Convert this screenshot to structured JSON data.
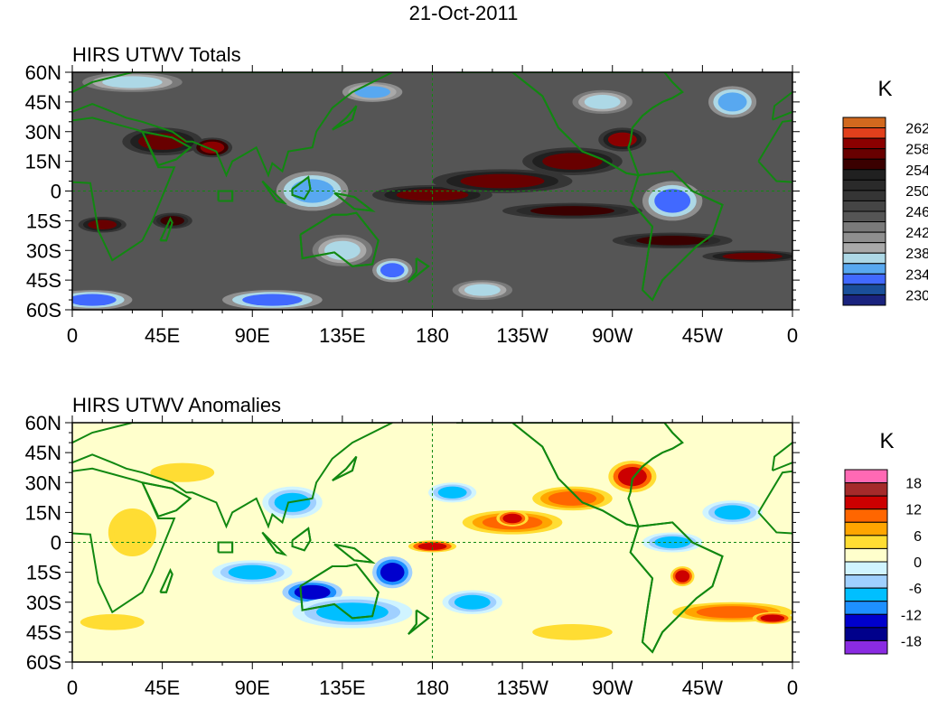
{
  "figure_title": "21-Oct-2011",
  "chart_data": [
    {
      "type": "heatmap",
      "title": "HIRS UTWV Totals",
      "units": "K",
      "lon_ticks": [
        "0",
        "45E",
        "90E",
        "135E",
        "180",
        "135W",
        "90W",
        "45W",
        "0"
      ],
      "lat_ticks": [
        "60N",
        "45N",
        "30N",
        "15N",
        "0",
        "15S",
        "30S",
        "45S",
        "60S"
      ],
      "lon_range": [
        0,
        360
      ],
      "lat_range": [
        -60,
        60
      ],
      "colorbar": {
        "levels_start": 230,
        "levels_step": 2,
        "labels": [
          "262",
          "258",
          "254",
          "250",
          "246",
          "242",
          "238",
          "234",
          "230"
        ],
        "colors_top_to_bottom": [
          "#d2691e",
          "#e2401c",
          "#8b0000",
          "#680000",
          "#3a0000",
          "#202020",
          "#2a2a2a",
          "#353535",
          "#454545",
          "#555555",
          "#7a7a7a",
          "#8f8f8f",
          "#a9a9a9",
          "#add8e6",
          "#58a8f0",
          "#4169ff",
          "#1a4f9a",
          "#1a237e"
        ]
      },
      "background_value": 245,
      "features": [
        {
          "lon": 180,
          "lat": -2,
          "rlon": 30,
          "rlat": 5,
          "value": 256
        },
        {
          "lon": 215,
          "lat": 5,
          "rlon": 35,
          "rlat": 6,
          "value": 256
        },
        {
          "lon": 250,
          "lat": 15,
          "rlon": 25,
          "rlat": 7,
          "value": 257
        },
        {
          "lon": 275,
          "lat": 26,
          "rlon": 12,
          "rlat": 6,
          "value": 258
        },
        {
          "lon": 250,
          "lat": -10,
          "rlon": 35,
          "rlat": 4,
          "value": 255
        },
        {
          "lon": 300,
          "lat": -25,
          "rlon": 30,
          "rlat": 4,
          "value": 255
        },
        {
          "lon": 340,
          "lat": -33,
          "rlon": 25,
          "rlat": 3,
          "value": 256
        },
        {
          "lon": 45,
          "lat": 25,
          "rlon": 20,
          "rlat": 7,
          "value": 257
        },
        {
          "lon": 70,
          "lat": 22,
          "rlon": 10,
          "rlat": 5,
          "value": 259
        },
        {
          "lon": 15,
          "lat": -17,
          "rlon": 12,
          "rlat": 4,
          "value": 256
        },
        {
          "lon": 50,
          "lat": -15,
          "rlon": 10,
          "rlat": 4,
          "value": 255
        },
        {
          "lon": 120,
          "lat": 0,
          "rlon": 18,
          "rlat": 10,
          "value": 234
        },
        {
          "lon": 135,
          "lat": -30,
          "rlon": 15,
          "rlat": 8,
          "value": 237
        },
        {
          "lon": 160,
          "lat": -40,
          "rlon": 10,
          "rlat": 6,
          "value": 233
        },
        {
          "lon": 300,
          "lat": -5,
          "rlon": 15,
          "rlat": 10,
          "value": 233
        },
        {
          "lon": 265,
          "lat": 45,
          "rlon": 15,
          "rlat": 6,
          "value": 236
        },
        {
          "lon": 330,
          "lat": 45,
          "rlon": 12,
          "rlat": 8,
          "value": 234
        },
        {
          "lon": 30,
          "lat": 55,
          "rlon": 25,
          "rlat": 5,
          "value": 236
        },
        {
          "lon": 150,
          "lat": 50,
          "rlon": 15,
          "rlat": 5,
          "value": 235
        },
        {
          "lon": 100,
          "lat": -55,
          "rlon": 25,
          "rlat": 5,
          "value": 232
        },
        {
          "lon": 10,
          "lat": -55,
          "rlon": 20,
          "rlat": 5,
          "value": 233
        },
        {
          "lon": 205,
          "lat": -50,
          "rlon": 15,
          "rlat": 5,
          "value": 236
        }
      ]
    },
    {
      "type": "heatmap",
      "title": "HIRS UTWV Anomalies",
      "units": "K",
      "lon_ticks": [
        "0",
        "45E",
        "90E",
        "135E",
        "180",
        "135W",
        "90W",
        "45W",
        "0"
      ],
      "lat_ticks": [
        "60N",
        "45N",
        "30N",
        "15N",
        "0",
        "15S",
        "30S",
        "45S",
        "60S"
      ],
      "lon_range": [
        0,
        360
      ],
      "lat_range": [
        -60,
        60
      ],
      "colorbar": {
        "levels_start": -18,
        "levels_step": 3,
        "labels": [
          "18",
          "12",
          "6",
          "0",
          "-6",
          "-12",
          "-18"
        ],
        "colors_top_to_bottom": [
          "#ff69b4",
          "#a52a2a",
          "#cc0000",
          "#ff6600",
          "#ffa500",
          "#ffdd33",
          "#ffffcc",
          "#d0f4ff",
          "#a0d0ff",
          "#00bfff",
          "#1e90ff",
          "#0000cd",
          "#00008b",
          "#8a2be2"
        ]
      },
      "background_value": 1,
      "features": [
        {
          "lon": 220,
          "lat": 10,
          "rlon": 25,
          "rlat": 6,
          "value": 9
        },
        {
          "lon": 250,
          "lat": 22,
          "rlon": 20,
          "rlat": 6,
          "value": 10
        },
        {
          "lon": 280,
          "lat": 33,
          "rlon": 12,
          "rlat": 8,
          "value": 14
        },
        {
          "lon": 220,
          "lat": 12,
          "rlon": 8,
          "rlat": 4,
          "value": 13
        },
        {
          "lon": 180,
          "lat": -2,
          "rlon": 12,
          "rlat": 3,
          "value": 13
        },
        {
          "lon": 330,
          "lat": -35,
          "rlon": 30,
          "rlat": 5,
          "value": 11
        },
        {
          "lon": 350,
          "lat": -38,
          "rlon": 10,
          "rlat": 3,
          "value": 14
        },
        {
          "lon": 305,
          "lat": -17,
          "rlon": 6,
          "rlat": 5,
          "value": 14
        },
        {
          "lon": 120,
          "lat": -25,
          "rlon": 15,
          "rlat": 6,
          "value": -15
        },
        {
          "lon": 160,
          "lat": -15,
          "rlon": 10,
          "rlat": 8,
          "value": -15
        },
        {
          "lon": 140,
          "lat": -35,
          "rlon": 30,
          "rlat": 8,
          "value": -8
        },
        {
          "lon": 90,
          "lat": -15,
          "rlon": 20,
          "rlat": 6,
          "value": -8
        },
        {
          "lon": 190,
          "lat": 25,
          "rlon": 12,
          "rlat": 5,
          "value": -9
        },
        {
          "lon": 300,
          "lat": 0,
          "rlon": 15,
          "rlat": 5,
          "value": -8
        },
        {
          "lon": 30,
          "lat": 5,
          "rlon": 15,
          "rlat": 15,
          "value": 4
        },
        {
          "lon": 55,
          "lat": 35,
          "rlon": 20,
          "rlat": 6,
          "value": 4
        },
        {
          "lon": 110,
          "lat": 20,
          "rlon": 15,
          "rlat": 8,
          "value": -7
        },
        {
          "lon": 20,
          "lat": -40,
          "rlon": 20,
          "rlat": 5,
          "value": 5
        },
        {
          "lon": 250,
          "lat": -45,
          "rlon": 25,
          "rlat": 5,
          "value": 5
        },
        {
          "lon": 200,
          "lat": -30,
          "rlon": 15,
          "rlat": 6,
          "value": -8
        },
        {
          "lon": 330,
          "lat": 15,
          "rlon": 15,
          "rlat": 6,
          "value": -7
        }
      ]
    }
  ]
}
